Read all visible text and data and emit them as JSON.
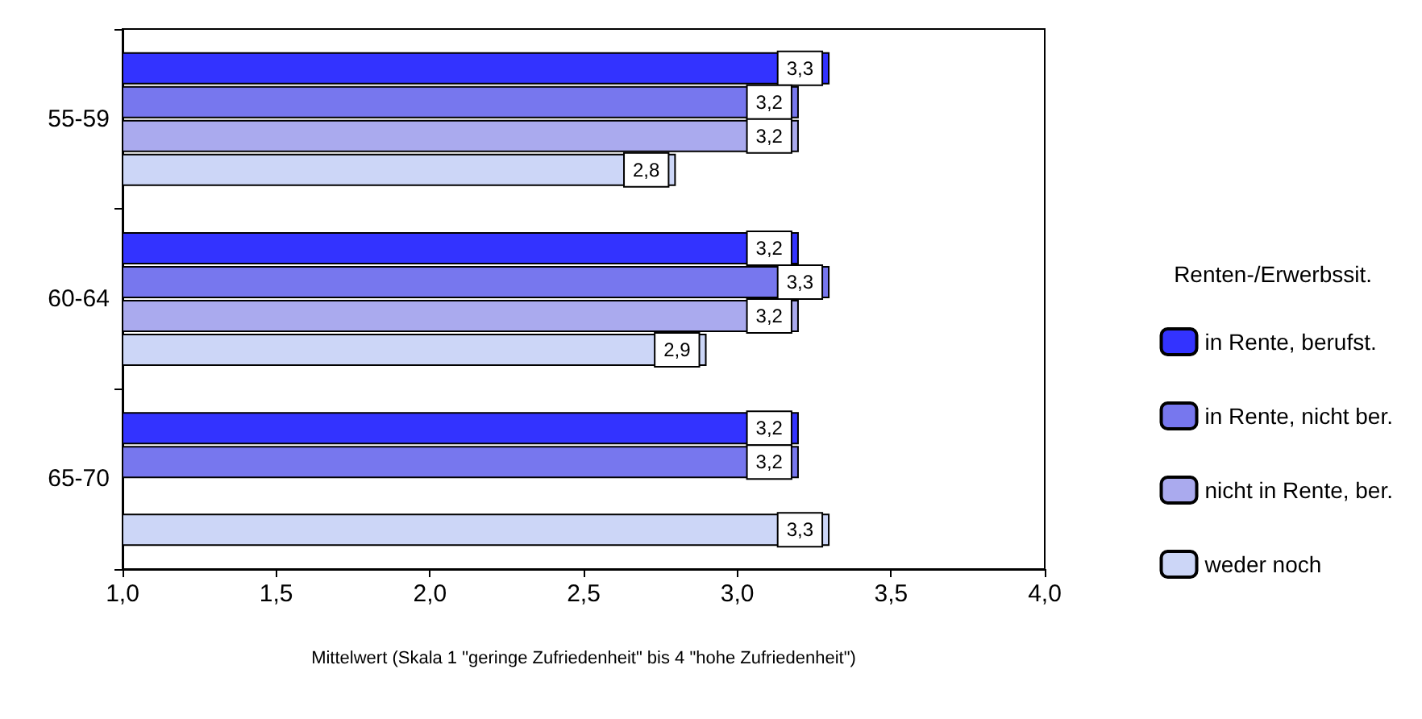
{
  "chart_data": {
    "type": "bar",
    "orientation": "horizontal",
    "xlabel": "Mittelwert (Skala 1 \"geringe Zufriedenheit\" bis 4 \"hohe Zufriedenheit\")",
    "legend_title": "Renten-/Erwerbssit.",
    "legend": "right",
    "grid": false,
    "categories": [
      "55-59",
      "60-64",
      "65-70"
    ],
    "xlim": [
      1,
      4
    ],
    "xticks": [
      {
        "value": 1,
        "label": "1,0"
      },
      {
        "value": 1.5,
        "label": "1,5"
      },
      {
        "value": 2,
        "label": "2,0"
      },
      {
        "value": 2.5,
        "label": "2,5"
      },
      {
        "value": 3,
        "label": "3,0"
      },
      {
        "value": 3.5,
        "label": "3,5"
      },
      {
        "value": 4,
        "label": "4,0"
      }
    ],
    "series": [
      {
        "name": "in Rente, berufst.",
        "color": "#3333ff",
        "values": [
          3.3,
          3.2,
          3.2
        ],
        "value_labels": [
          "3,3",
          "3,2",
          "3,2"
        ]
      },
      {
        "name": "in Rente, nicht ber.",
        "color": "#7777ee",
        "values": [
          3.2,
          3.3,
          3.2
        ],
        "value_labels": [
          "3,2",
          "3,3",
          "3,2"
        ]
      },
      {
        "name": "nicht in Rente, ber.",
        "color": "#aaaaee",
        "values": [
          3.2,
          3.2,
          null
        ],
        "value_labels": [
          "3,2",
          "3,2",
          null
        ]
      },
      {
        "name": "weder noch",
        "color": "#ccd6f7",
        "values": [
          2.8,
          2.9,
          3.3
        ],
        "value_labels": [
          "2,8",
          "2,9",
          "3,3"
        ]
      }
    ]
  }
}
